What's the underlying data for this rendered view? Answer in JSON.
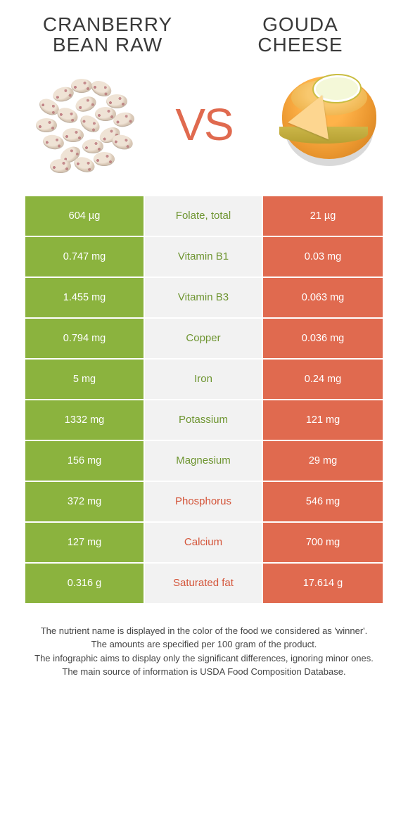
{
  "titles": {
    "left_line1": "CRANBERRY",
    "left_line2": "BEAN RAW",
    "right_line1": "GOUDA",
    "right_line2": "CHEESE"
  },
  "vs_text": "VS",
  "colors": {
    "left_bg": "#8bb33e",
    "right_bg": "#e06a4f",
    "mid_bg": "#f2f2f2",
    "left_text": "#6e9531",
    "right_text": "#d4553a",
    "page_bg": "#ffffff"
  },
  "rows": [
    {
      "left": "604 µg",
      "label": "Folate, total",
      "right": "21 µg",
      "winner": "left"
    },
    {
      "left": "0.747 mg",
      "label": "Vitamin B1",
      "right": "0.03 mg",
      "winner": "left"
    },
    {
      "left": "1.455 mg",
      "label": "Vitamin B3",
      "right": "0.063 mg",
      "winner": "left"
    },
    {
      "left": "0.794 mg",
      "label": "Copper",
      "right": "0.036 mg",
      "winner": "left"
    },
    {
      "left": "5 mg",
      "label": "Iron",
      "right": "0.24 mg",
      "winner": "left"
    },
    {
      "left": "1332 mg",
      "label": "Potassium",
      "right": "121 mg",
      "winner": "left"
    },
    {
      "left": "156 mg",
      "label": "Magnesium",
      "right": "29 mg",
      "winner": "left"
    },
    {
      "left": "372 mg",
      "label": "Phosphorus",
      "right": "546 mg",
      "winner": "right"
    },
    {
      "left": "127 mg",
      "label": "Calcium",
      "right": "700 mg",
      "winner": "right"
    },
    {
      "left": "0.316 g",
      "label": "Saturated fat",
      "right": "17.614 g",
      "winner": "right"
    }
  ],
  "notes": {
    "l1": "The nutrient name is displayed in the color of the food we considered as 'winner'.",
    "l2": "The amounts are specified per 100 gram of the product.",
    "l3": "The infographic aims to display only the significant differences, ignoring minor ones.",
    "l4": "The main source of information is USDA Food Composition Database."
  }
}
